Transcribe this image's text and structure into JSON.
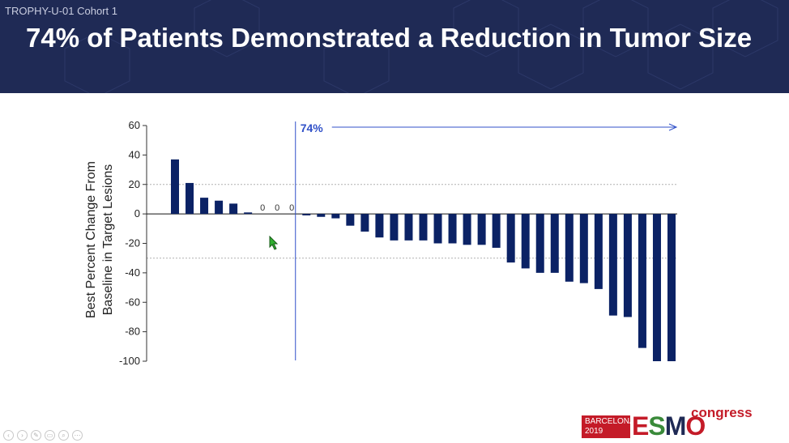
{
  "slide": {
    "cohort_label": "TROPHY-U-01 Cohort 1",
    "title": "74% of Patients Demonstrated a Reduction in Tumor Size",
    "colors": {
      "header_bg": "#1f2a55",
      "bar": "#0b2265",
      "annotation": "#3050c8"
    }
  },
  "chart_data": {
    "type": "bar",
    "title": "",
    "xlabel": "",
    "ylabel": [
      "Best Percent Change From",
      "Baseline in Target Lesions"
    ],
    "ylim": [
      -100,
      60
    ],
    "yticks": [
      60,
      40,
      20,
      0,
      -20,
      -40,
      -60,
      -80,
      -100
    ],
    "reference_lines": [
      20,
      -30
    ],
    "grid": false,
    "values": [
      37,
      21,
      11,
      9,
      7,
      1,
      0,
      0,
      0,
      -1,
      -2,
      -3,
      -8,
      -12,
      -16,
      -18,
      -18,
      -18,
      -20,
      -20,
      -21,
      -21,
      -23,
      -33,
      -37,
      -40,
      -40,
      -46,
      -47,
      -51,
      -69,
      -70,
      -91,
      -100,
      -100
    ],
    "zero_labels": [
      "0",
      "0",
      "0"
    ],
    "annotation": {
      "label": "74%",
      "starts_at_bar": 9
    }
  },
  "logo": {
    "city": "BARCELONA",
    "year": "2019",
    "brand": [
      "E",
      "S",
      "M",
      "O"
    ],
    "suffix": "congress"
  },
  "controls": [
    "previous-icon",
    "next-icon",
    "pen-icon",
    "slides-icon",
    "zoom-icon",
    "more-icon"
  ]
}
